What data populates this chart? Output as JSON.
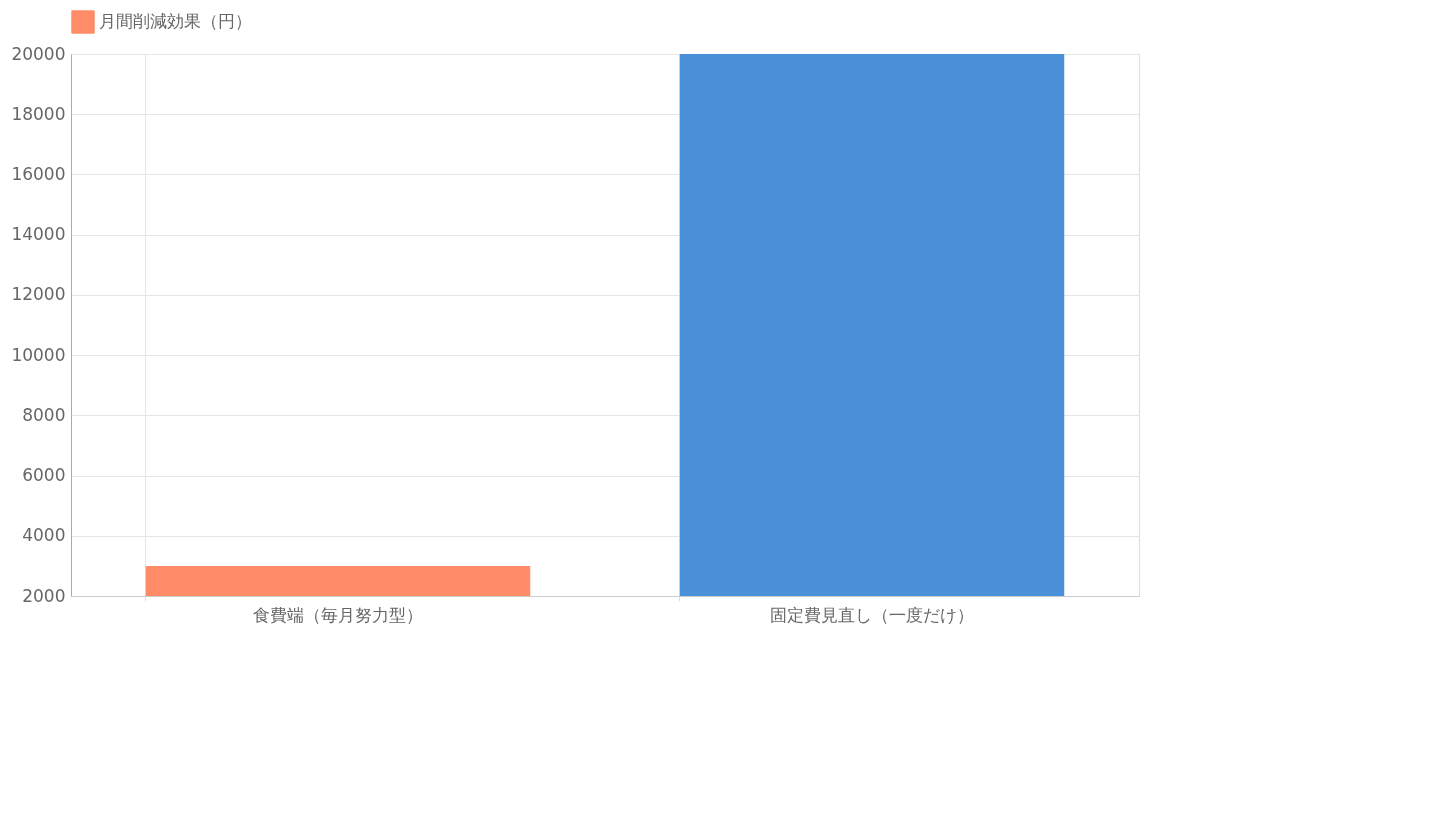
{
  "chart_data": {
    "type": "bar",
    "categories": [
      "食費端（毎月努力型）",
      "固定費見直し（一度だけ）"
    ],
    "series": [
      {
        "name": "月間削減効果（円）",
        "colors": [
          "#ff8c66",
          "#4a90d9"
        ],
        "values": [
          3000,
          20000
        ]
      }
    ],
    "ylim": [
      2000,
      20000
    ],
    "yticks": [
      2000,
      4000,
      6000,
      8000,
      10000,
      12000,
      14000,
      16000,
      18000,
      20000
    ],
    "grid": true,
    "legend": "top"
  }
}
